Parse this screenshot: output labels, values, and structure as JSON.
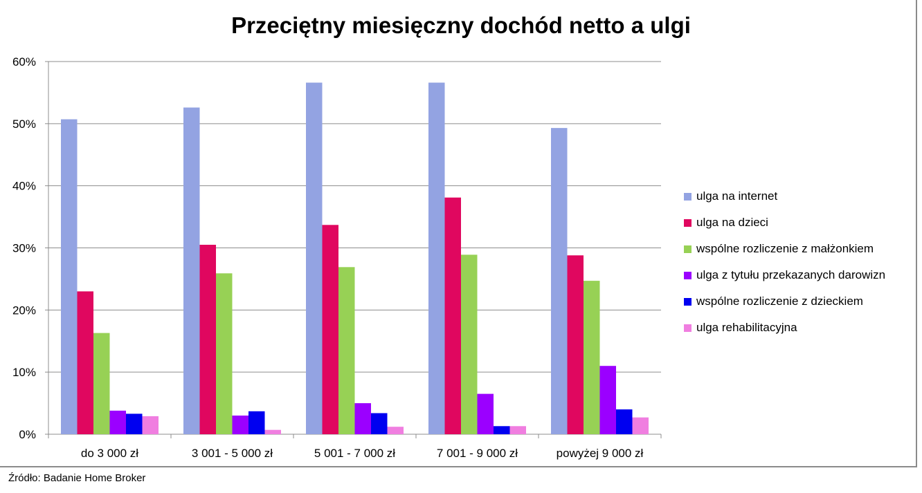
{
  "chart_data": {
    "type": "bar",
    "title": "Przeciętny miesięczny dochód netto a ulgi",
    "xlabel": "",
    "ylabel": "",
    "ylim": [
      0,
      60
    ],
    "y_ticks": [
      "0%",
      "10%",
      "20%",
      "30%",
      "40%",
      "50%",
      "60%"
    ],
    "grid": true,
    "legend_position": "right",
    "categories": [
      "do 3 000 zł",
      "3 001 - 5 000 zł",
      "5 001 - 7 000 zł",
      "7 001 - 9 000 zł",
      "powyżej 9 000 zł"
    ],
    "series": [
      {
        "name": "ulga na internet",
        "color": "#93a3e2",
        "values": [
          50.7,
          52.6,
          56.6,
          56.6,
          49.3
        ]
      },
      {
        "name": "ulga na dzieci",
        "color": "#e0075f",
        "values": [
          23.0,
          30.5,
          33.7,
          38.1,
          28.8
        ]
      },
      {
        "name": "wspólne rozliczenie z małżonkiem",
        "color": "#97d155",
        "values": [
          16.3,
          25.9,
          26.9,
          28.9,
          24.7
        ]
      },
      {
        "name": "ulga z tytułu przekazanych darowizn",
        "color": "#9b00ff",
        "values": [
          3.8,
          3.0,
          5.0,
          6.5,
          11.0
        ]
      },
      {
        "name": "wspólne rozliczenie z dzieckiem",
        "color": "#0000f0",
        "values": [
          3.3,
          3.7,
          3.4,
          1.3,
          4.0
        ]
      },
      {
        "name": "ulga rehabilitacyjna",
        "color": "#f07ee0",
        "values": [
          2.9,
          0.7,
          1.2,
          1.3,
          2.7
        ]
      }
    ]
  },
  "source_note": "Źródło: Badanie Home Broker"
}
